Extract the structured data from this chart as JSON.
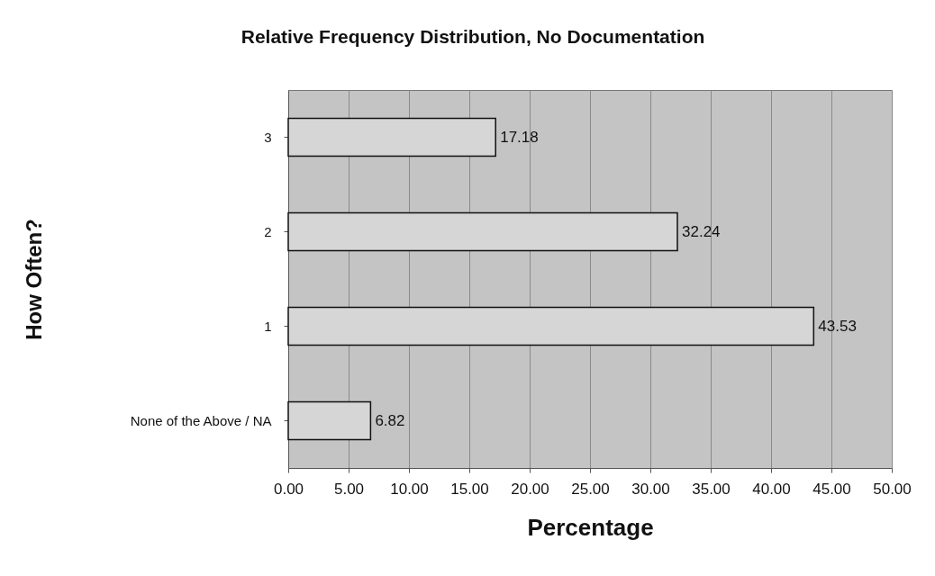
{
  "chart_data": {
    "type": "bar",
    "orientation": "horizontal",
    "title": "Relative Frequency Distribution, No Documentation",
    "xlabel": "Percentage",
    "ylabel": "How Often?",
    "categories": [
      "3",
      "2",
      "1",
      "None of the Above / NA"
    ],
    "values": [
      17.18,
      32.24,
      43.53,
      6.82
    ],
    "color": "#d6d6d6",
    "xlim": [
      0,
      50
    ],
    "xticks": [
      {
        "value": 0,
        "label": "0.00"
      },
      {
        "value": 5,
        "label": "5.00"
      },
      {
        "value": 10,
        "label": "10.00"
      },
      {
        "value": 15,
        "label": "15.00"
      },
      {
        "value": 20,
        "label": "20.00"
      },
      {
        "value": 25,
        "label": "25.00"
      },
      {
        "value": 30,
        "label": "30.00"
      },
      {
        "value": 35,
        "label": "35.00"
      },
      {
        "value": 40,
        "label": "40.00"
      },
      {
        "value": 45,
        "label": "45.00"
      },
      {
        "value": 50,
        "label": "50.00"
      }
    ],
    "grid": "x",
    "data_labels": true
  }
}
